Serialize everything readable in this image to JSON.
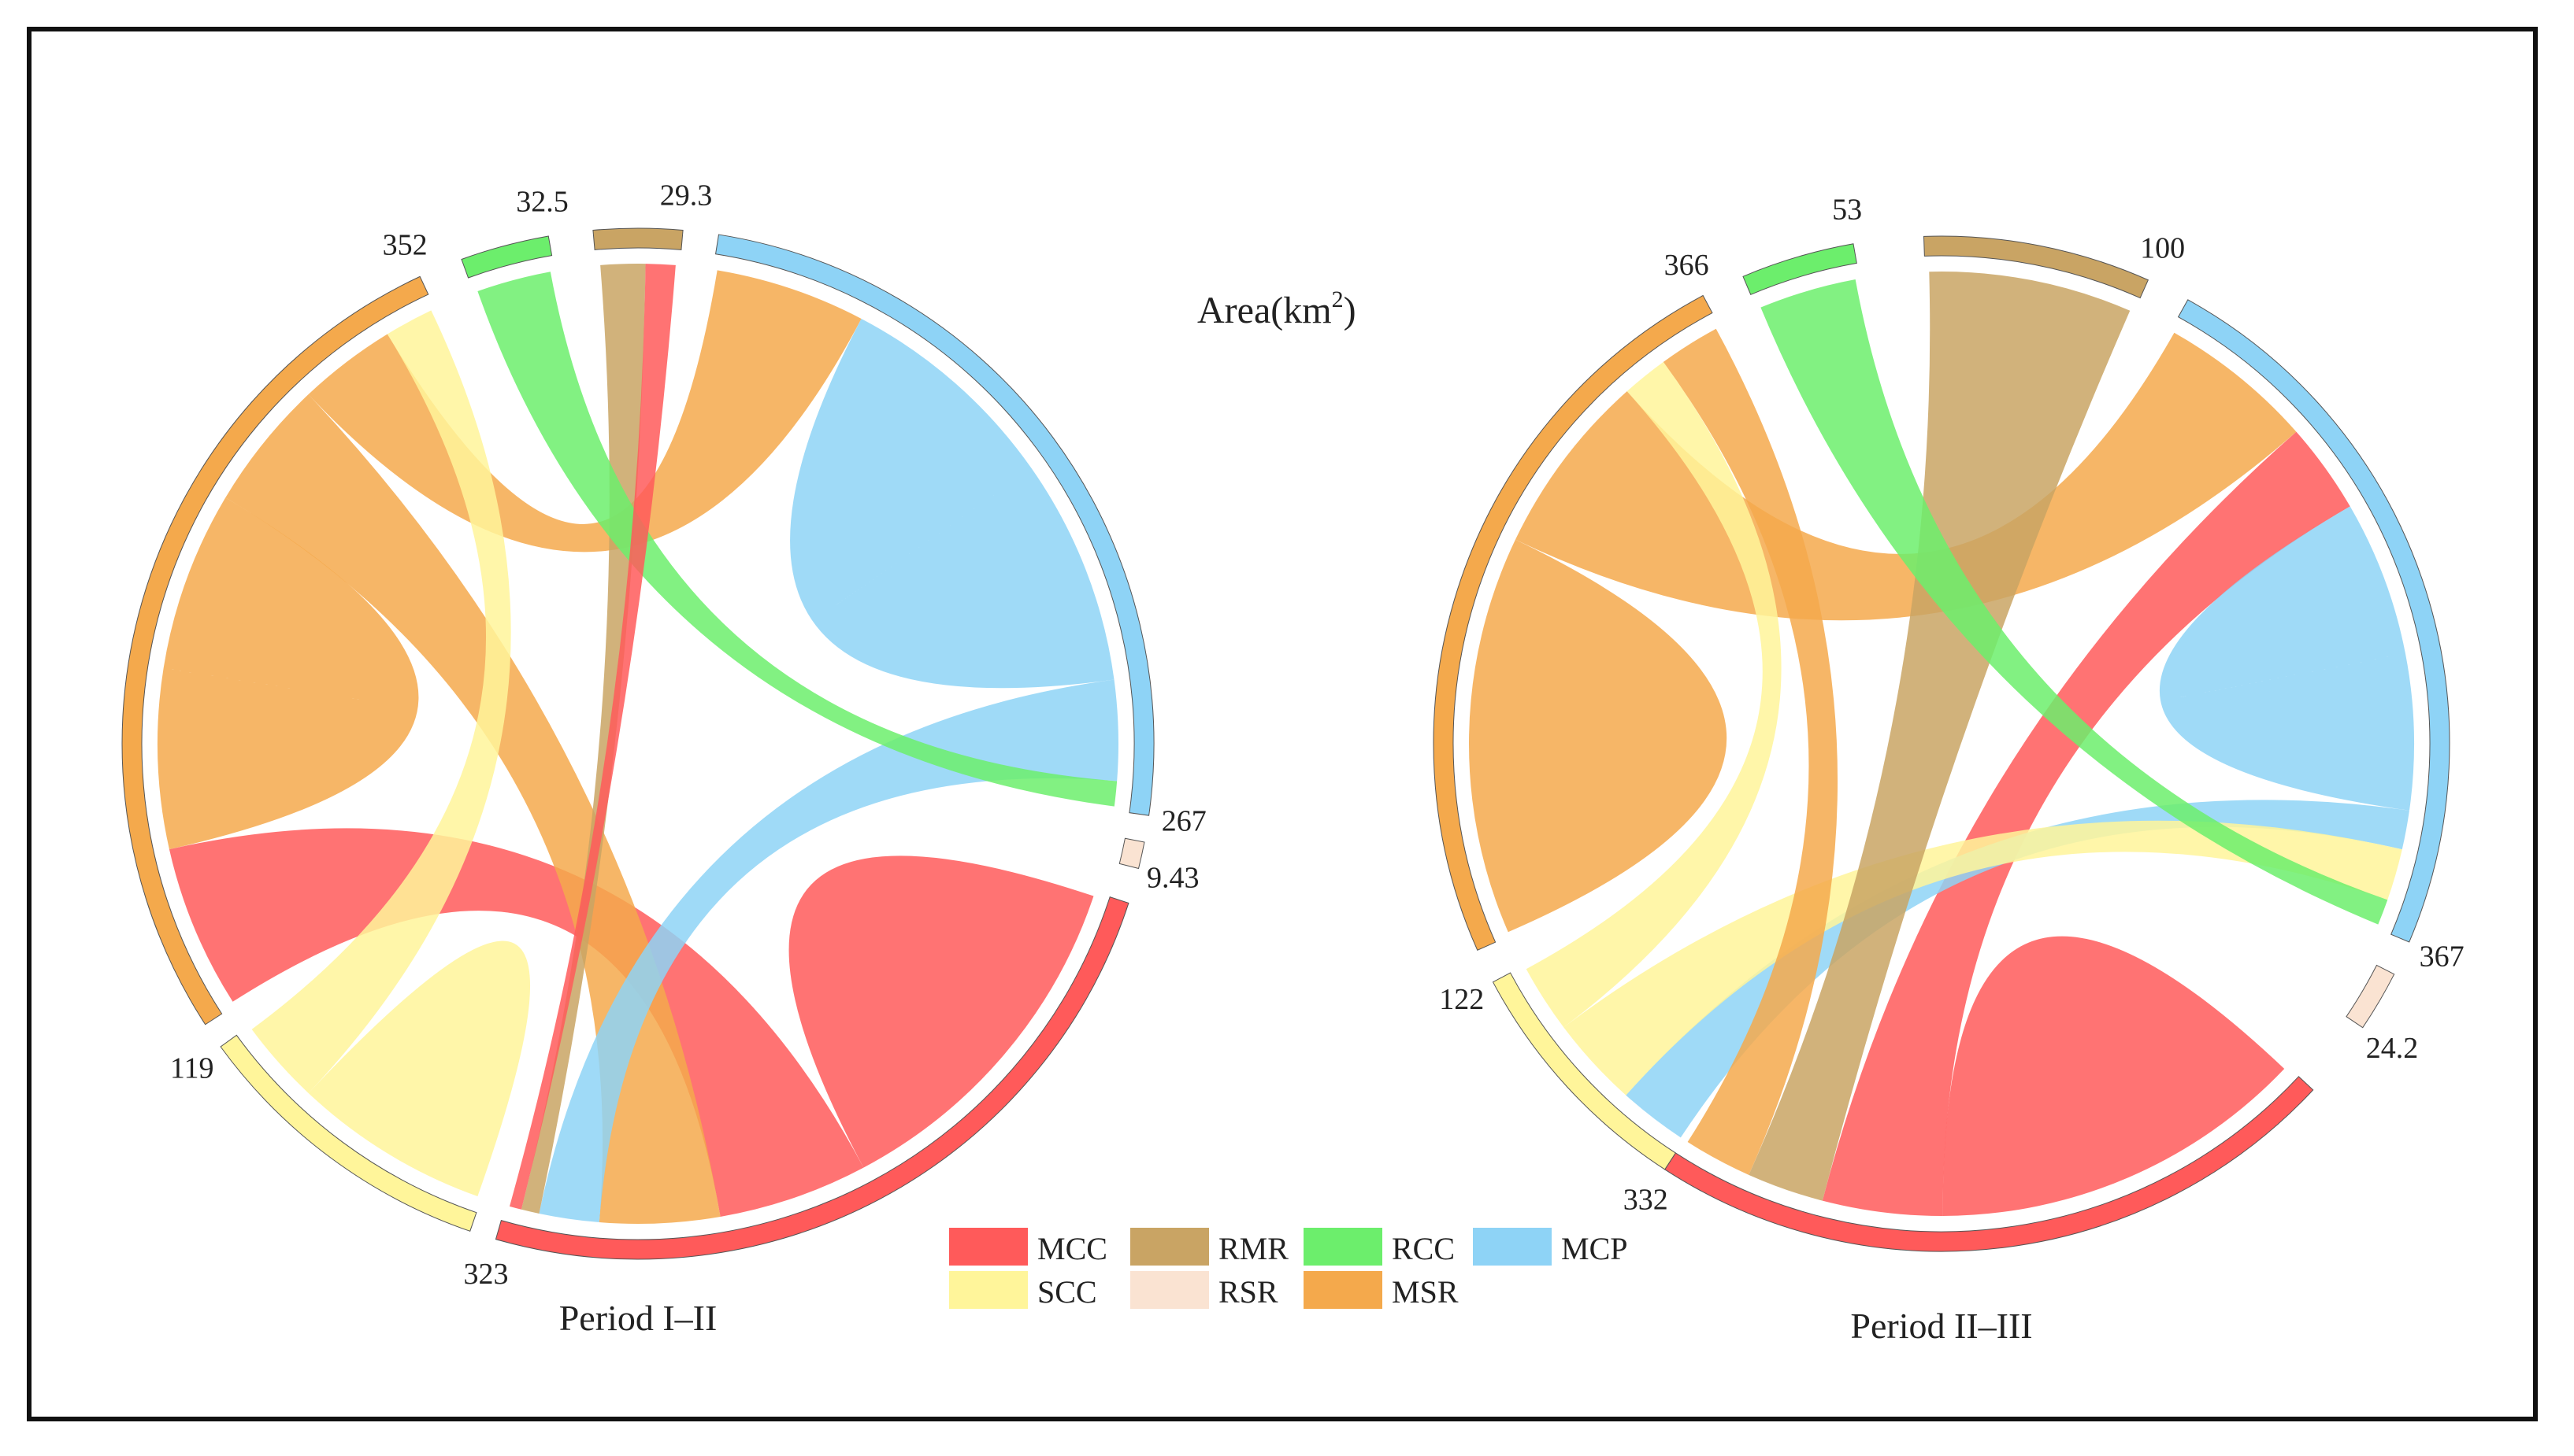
{
  "figure": {
    "unit_label": "Area(km2)",
    "unit_base": "Area(km",
    "unit_sup": "2",
    "unit_close": ")"
  },
  "colors": {
    "MCC": "#ff5a5a",
    "SCC": "#fff59a",
    "RMR": "#c9a464",
    "RSR": "#fae3d2",
    "RCC": "#6cee6c",
    "MSR": "#f4a94c",
    "MCP": "#8ed3f6"
  },
  "legend": {
    "items": [
      {
        "key": "MCC",
        "label": "MCC"
      },
      {
        "key": "RMR",
        "label": "RMR"
      },
      {
        "key": "RCC",
        "label": "RCC"
      },
      {
        "key": "MCP",
        "label": "MCP"
      },
      {
        "key": "SCC",
        "label": "SCC"
      },
      {
        "key": "RSR",
        "label": "RSR"
      },
      {
        "key": "MSR",
        "label": "MSR"
      }
    ]
  },
  "chart_data": [
    {
      "type": "chord",
      "title": "Period I–II",
      "categories": [
        "MCP",
        "RSR",
        "MCC",
        "SCC",
        "MSR",
        "RCC",
        "RMR"
      ],
      "segments": [
        {
          "key": "MCP",
          "value": 267,
          "label": "267",
          "start_deg": 9,
          "end_deg": 98
        },
        {
          "key": "RSR",
          "value": 9.43,
          "label": "9.43",
          "start_deg": 101,
          "end_deg": 104
        },
        {
          "key": "MCC",
          "value": 323,
          "label": "323",
          "start_deg": 108,
          "end_deg": 196
        },
        {
          "key": "SCC",
          "value": 119,
          "label": "119",
          "start_deg": 199,
          "end_deg": 234
        },
        {
          "key": "MSR",
          "value": 352,
          "label": "352",
          "start_deg": 237,
          "end_deg": 335
        },
        {
          "key": "RCC",
          "value": 32.5,
          "label": "32.5",
          "start_deg": 340,
          "end_deg": 350
        },
        {
          "key": "RMR",
          "value": 29.3,
          "label": "29.3",
          "start_deg": 355,
          "end_deg": 5
        }
      ],
      "flows": [
        {
          "from": "MCC",
          "to": "MCC",
          "value": 120
        },
        {
          "from": "MCC",
          "to": "MSR",
          "value": 100
        },
        {
          "from": "MSR",
          "to": "MSR",
          "value": 110
        },
        {
          "from": "MSR",
          "to": "MCC",
          "value": 80
        },
        {
          "from": "MSR",
          "to": "MCP",
          "value": 60
        },
        {
          "from": "MCP",
          "to": "MCP",
          "value": 90
        },
        {
          "from": "MCP",
          "to": "MCC",
          "value": 40
        },
        {
          "from": "SCC",
          "to": "SCC",
          "value": 35
        },
        {
          "from": "SCC",
          "to": "MSR",
          "value": 30
        },
        {
          "from": "RMR",
          "to": "MCC",
          "value": 12
        },
        {
          "from": "RCC",
          "to": "MCP",
          "value": 10
        },
        {
          "from": "MCC",
          "to": "RMR",
          "value": 8
        }
      ]
    },
    {
      "type": "chord",
      "title": "Period II–III",
      "categories": [
        "MCP",
        "RSR",
        "MCC",
        "SCC",
        "MSR",
        "RCC",
        "RMR"
      ],
      "segments": [
        {
          "key": "MCP",
          "value": 367,
          "label": "367",
          "start_deg": 29,
          "end_deg": 113
        },
        {
          "key": "RSR",
          "value": 24.2,
          "label": "24.2",
          "start_deg": 117,
          "end_deg": 124
        },
        {
          "key": "MCC",
          "value": 332,
          "label": "332",
          "start_deg": 133,
          "end_deg": 213
        },
        {
          "key": "SCC",
          "value": 122,
          "label": "122",
          "start_deg": 213,
          "end_deg": 242
        },
        {
          "key": "MSR",
          "value": 366,
          "label": "366",
          "start_deg": 246,
          "end_deg": 332
        },
        {
          "key": "RCC",
          "value": 53,
          "label": "53",
          "start_deg": 337,
          "end_deg": 350
        },
        {
          "key": "RMR",
          "value": 100,
          "label": "100",
          "start_deg": 358,
          "end_deg": 24
        }
      ],
      "flows": [
        {
          "from": "MSR",
          "to": "MSR",
          "value": 130
        },
        {
          "from": "MSR",
          "to": "MCP",
          "value": 120
        },
        {
          "from": "MCC",
          "to": "MCC",
          "value": 110
        },
        {
          "from": "MCC",
          "to": "MCP",
          "value": 70
        },
        {
          "from": "MCP",
          "to": "MCP",
          "value": 120
        },
        {
          "from": "MCP",
          "to": "SCC",
          "value": 30
        },
        {
          "from": "SCC",
          "to": "MCP",
          "value": 40
        },
        {
          "from": "SCC",
          "to": "MSR",
          "value": 30
        },
        {
          "from": "RMR",
          "to": "MCC",
          "value": 45
        },
        {
          "from": "RCC",
          "to": "MCP",
          "value": 20
        },
        {
          "from": "MSR",
          "to": "MCC",
          "value": 40
        }
      ]
    }
  ]
}
